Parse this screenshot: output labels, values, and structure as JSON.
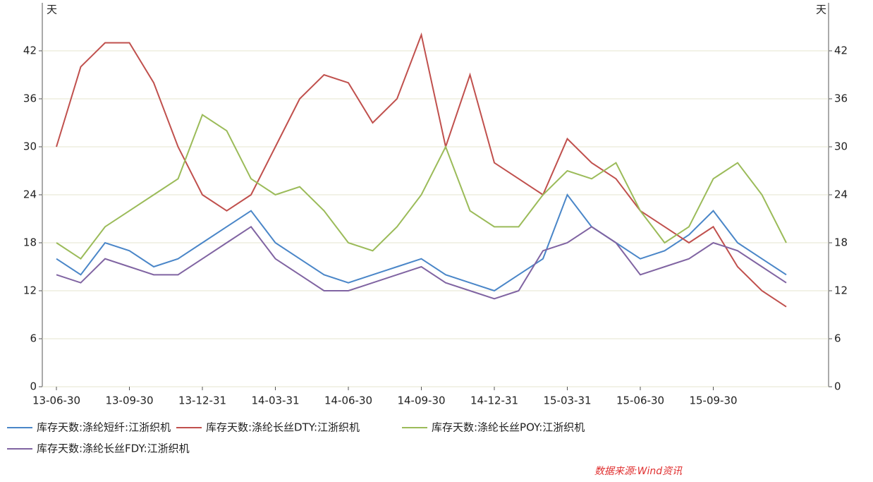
{
  "chart_data": {
    "type": "line",
    "y_label": "天",
    "source": "数据来源:Wind资讯",
    "categories": [
      "13-06-30",
      null,
      null,
      "13-09-30",
      null,
      null,
      "13-12-31",
      null,
      null,
      "14-03-31",
      null,
      null,
      "14-06-30",
      null,
      null,
      "14-09-30",
      null,
      null,
      "14-12-31",
      null,
      null,
      "15-03-31",
      null,
      null,
      "15-06-30",
      null,
      null,
      "15-09-30",
      null,
      null,
      null
    ],
    "ylim": [
      0,
      48
    ],
    "yticks": [
      0,
      6,
      12,
      18,
      24,
      30,
      36,
      42
    ],
    "grid": true,
    "series": [
      {
        "name": "库存天数:涤纶短纤:江浙织机",
        "color": "#4a86c8",
        "values": [
          16,
          14,
          18,
          17,
          15,
          16,
          18,
          20,
          22,
          18,
          16,
          14,
          13,
          14,
          15,
          16,
          14,
          13,
          12,
          14,
          16,
          24,
          20,
          18,
          16,
          17,
          19,
          22,
          18,
          16,
          14
        ]
      },
      {
        "name": "库存天数:涤纶长丝DTY:江浙织机",
        "color": "#c0504d",
        "values": [
          30,
          40,
          43,
          43,
          38,
          30,
          24,
          22,
          24,
          30,
          36,
          39,
          38,
          33,
          36,
          44,
          30,
          39,
          28,
          26,
          24,
          31,
          28,
          26,
          22,
          20,
          18,
          20,
          15,
          12,
          10
        ]
      },
      {
        "name": "库存天数:涤纶长丝POY:江浙织机",
        "color": "#9bbb59",
        "values": [
          18,
          16,
          20,
          22,
          24,
          26,
          34,
          32,
          26,
          24,
          25,
          22,
          18,
          17,
          20,
          24,
          30,
          22,
          20,
          20,
          24,
          27,
          26,
          28,
          22,
          18,
          20,
          26,
          28,
          24,
          18
        ]
      },
      {
        "name": "库存天数:涤纶长丝FDY:江浙织机",
        "color": "#8064a2",
        "values": [
          14,
          13,
          16,
          15,
          14,
          14,
          16,
          18,
          20,
          16,
          14,
          12,
          12,
          13,
          14,
          15,
          13,
          12,
          11,
          12,
          17,
          18,
          20,
          18,
          14,
          15,
          16,
          18,
          17,
          15,
          13
        ]
      }
    ]
  }
}
